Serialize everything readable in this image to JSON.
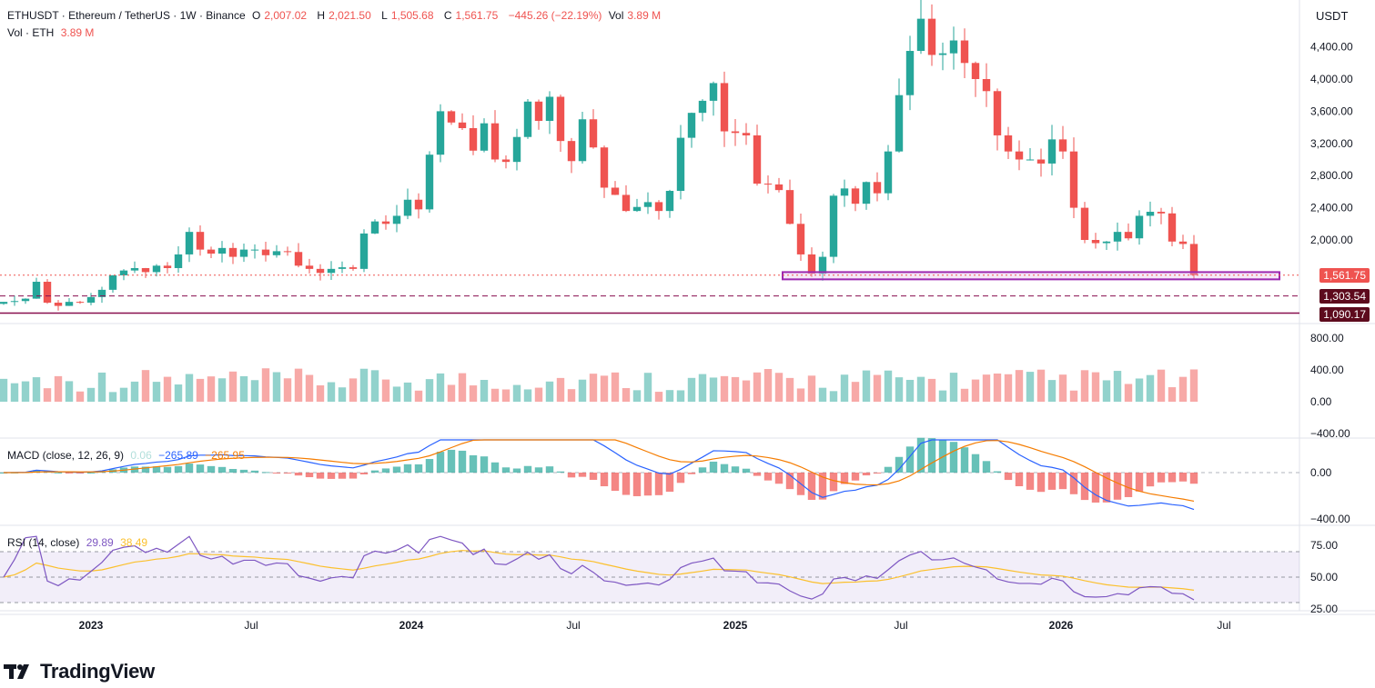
{
  "header": {
    "symbol": "ETHUSDT · Ethereum / TetherUS · 1W · Binance",
    "open_label": "O",
    "open": "2,007.02",
    "high_label": "H",
    "high": "2,021.50",
    "low_label": "L",
    "low": "1,505.68",
    "close_label": "C",
    "close": "1,561.75",
    "change": "−445.26 (−22.19%)",
    "vol_label": "Vol",
    "vol": "3.89 M",
    "vol_series_label": "Vol · ETH",
    "vol_series_value": "3.89 M"
  },
  "macd_legend": {
    "label": "MACD (close, 12, 26, 9)",
    "hist": "0.06",
    "macd": "−265.89",
    "signal": "−265.95"
  },
  "rsi_legend": {
    "label": "RSI (14, close)",
    "rsi": "29.89",
    "ma": "38.49"
  },
  "currency": "USDT",
  "price_labels": {
    "last": "1,561.75",
    "level1": "1,303.54",
    "level2": "1,090.17"
  },
  "brand": "TradingView",
  "colors": {
    "up": "#26a69a",
    "down": "#ef5350",
    "macd": "#2962ff",
    "signal": "#f57c00",
    "rsi": "#7e57c2",
    "rsi_ma": "#fbc02d",
    "zone": "#9c27b0",
    "level": "#880e4f"
  },
  "chart_data": {
    "type": "candlestick",
    "interval": "1W",
    "price_axis": {
      "ticks": [
        2000,
        2400,
        2800,
        3200,
        3600,
        4000,
        4400
      ],
      "tick_labels": [
        "2,000.00",
        "2,400.00",
        "2,800.00",
        "3,200.00",
        "3,600.00",
        "4,000.00",
        "4,400.00"
      ]
    },
    "time_axis": {
      "labels": [
        "2023",
        "Jul",
        "2024",
        "Jul",
        "2025",
        "Jul",
        "2026",
        "Jul"
      ],
      "bold": [
        "2023",
        "2024",
        "2025",
        "2026"
      ]
    },
    "ohlc_close_path": [
      1230,
      1240,
      1270,
      1480,
      1220,
      1180,
      1230,
      1220,
      1290,
      1380,
      1560,
      1620,
      1650,
      1600,
      1680,
      1650,
      1820,
      2100,
      1880,
      1830,
      1900,
      1790,
      1880,
      1880,
      1810,
      1860,
      1850,
      1680,
      1640,
      1590,
      1640,
      1660,
      1640,
      2080,
      2230,
      2200,
      2300,
      2500,
      2380,
      3060,
      3600,
      3460,
      3390,
      3110,
      3450,
      3000,
      2970,
      3280,
      3720,
      3480,
      3780,
      3230,
      2980,
      3500,
      3150,
      2650,
      2560,
      2360,
      2410,
      2470,
      2360,
      2610,
      3270,
      3580,
      3730,
      3950,
      3350,
      3330,
      3300,
      2700,
      2690,
      2620,
      2200,
      1820,
      1580,
      1790,
      2550,
      2640,
      2450,
      2720,
      2580,
      3100,
      3800,
      4350,
      4750,
      4300,
      4320,
      4480,
      4200,
      4000,
      3850,
      3300,
      3100,
      3000,
      3000,
      2950,
      3250,
      3100,
      2400,
      2000,
      1960,
      1980,
      2100,
      2020,
      2300,
      2350,
      2330,
      1980,
      1950,
      1561.75
    ],
    "volume_axis": {
      "ticks": [
        -400,
        0,
        400,
        800
      ],
      "tick_labels": [
        "−400.00",
        "0.00",
        "400.00",
        "800.00"
      ]
    },
    "macd_axis": {
      "ticks": [
        -400,
        0
      ],
      "tick_labels": [
        "−400.00",
        "0.00"
      ]
    },
    "rsi_axis": {
      "ticks": [
        25,
        50,
        75
      ],
      "tick_labels": [
        "25.00",
        "50.00",
        "75.00"
      ],
      "upper_band": 70,
      "lower_band": 30
    },
    "support_zone": {
      "from": 1510,
      "to": 1600
    },
    "horizontal_levels": [
      1303.54,
      1090.17
    ],
    "last_price": 1561.75
  }
}
